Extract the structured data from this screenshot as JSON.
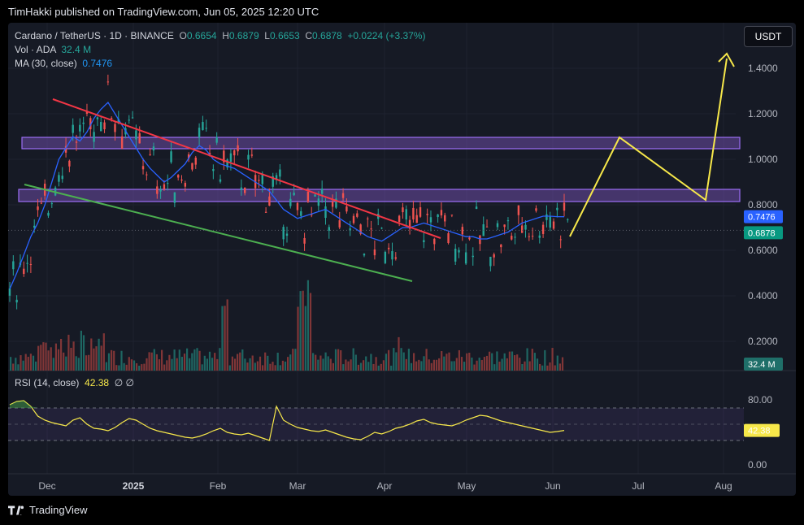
{
  "header": {
    "caption": "TimHakki published on TradingView.com, Jun 05, 2025 12:20 UTC"
  },
  "legend": {
    "symbol": "Cardano / TetherUS · 1D · BINANCE",
    "o_label": "O",
    "o_value": "0.6654",
    "h_label": "H",
    "h_value": "0.6879",
    "l_label": "L",
    "l_value": "0.6653",
    "c_label": "C",
    "c_value": "0.6878",
    "change": "+0.0224 (+3.37%)",
    "vol_label": "Vol · ADA",
    "vol_value": "32.4 M",
    "ma_label": "MA (30, close)",
    "ma_value": "0.7476"
  },
  "currency_button": "USDT",
  "rsi_legend": {
    "label": "RSI (14, close)",
    "value": "42.38",
    "extra": "∅ ∅"
  },
  "footer": {
    "brand": "TradingView"
  },
  "colors": {
    "bg": "#161a25",
    "up": "#26a69a",
    "down": "#ef5350",
    "ma": "#2962ff",
    "rsi": "#f7e84a",
    "zone": "#7e57c2",
    "red_line": "#f23645",
    "green_line": "#4caf50",
    "yellow_arrow": "#f7e84a"
  },
  "chart_data": [
    {
      "type": "line",
      "title": "Cardano / TetherUS · 1D · BINANCE",
      "x_ticks": [
        "Dec",
        "2025",
        "Feb",
        "Mar",
        "Apr",
        "May",
        "Jun",
        "Jul",
        "Aug"
      ],
      "y_ticks": [
        "1.4000",
        "1.2000",
        "1.0000",
        "0.8000",
        "0.6000",
        "0.4000",
        "0.2000"
      ],
      "price_labels": {
        "ma": "0.7476",
        "last": "0.6878",
        "volume": "32.4 M"
      },
      "ylim": [
        0.1,
        1.6
      ],
      "series": [
        {
          "values": [
            0.43,
            0.5,
            0.58,
            0.66,
            0.72,
            0.8,
            0.9,
            1.0,
            1.05,
            1.1,
            1.08,
            1.12,
            1.18,
            1.22,
            1.25,
            1.2,
            1.15,
            1.1,
            1.05,
            1.0,
            0.96,
            0.93,
            0.9,
            0.92,
            0.95,
            0.98,
            1.03,
            1.06,
            1.04,
            1.0,
            0.98,
            0.97,
            0.96,
            0.94,
            0.92,
            0.9,
            0.88,
            0.86,
            0.82,
            0.78,
            0.76,
            0.74,
            0.75,
            0.76,
            0.77,
            0.78,
            0.76,
            0.74,
            0.72,
            0.7,
            0.68,
            0.66,
            0.65,
            0.64,
            0.66,
            0.68,
            0.7,
            0.7,
            0.71,
            0.72,
            0.71,
            0.7,
            0.69,
            0.68,
            0.67,
            0.66,
            0.66,
            0.65,
            0.65,
            0.66,
            0.67,
            0.68,
            0.7,
            0.72,
            0.73,
            0.74,
            0.75,
            0.75,
            0.748,
            0.7476
          ]
        }
      ]
    },
    {
      "type": "line",
      "title": "RSI (14, close)",
      "y_ticks": [
        "80.00",
        "0.00"
      ],
      "value_label": "42.38",
      "ylim": [
        0,
        100
      ],
      "bands": [
        70,
        50,
        30
      ],
      "series": [
        {
          "values": [
            74,
            78,
            79,
            72,
            60,
            55,
            52,
            50,
            48,
            55,
            58,
            50,
            45,
            44,
            42,
            46,
            52,
            57,
            55,
            50,
            45,
            42,
            40,
            38,
            36,
            34,
            33,
            35,
            38,
            42,
            45,
            40,
            38,
            37,
            39,
            36,
            33,
            30,
            72,
            55,
            50,
            46,
            44,
            42,
            41,
            43,
            40,
            37,
            34,
            32,
            31,
            35,
            40,
            38,
            41,
            45,
            47,
            50,
            54,
            56,
            52,
            50,
            49,
            48,
            51,
            55,
            58,
            61,
            60,
            57,
            54,
            52,
            50,
            48,
            46,
            44,
            42,
            40,
            41,
            42.38
          ]
        }
      ]
    }
  ]
}
